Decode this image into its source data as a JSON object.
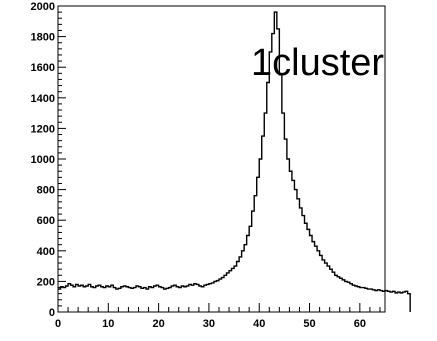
{
  "chart_data": {
    "type": "histogram",
    "title": "",
    "xlabel": "",
    "ylabel": "",
    "xlim": [
      0,
      65
    ],
    "ylim": [
      0,
      2000
    ],
    "grid": false,
    "legend": "none",
    "x_ticks": [
      "0",
      "10",
      "20",
      "30",
      "40",
      "50",
      "60"
    ],
    "y_ticks": [
      "0",
      "200",
      "400",
      "600",
      "800",
      "1000",
      "1200",
      "1400",
      "1600",
      "1800",
      "2000"
    ],
    "annotation": "1cluster",
    "line_color": "#000000",
    "bin_width": 0.5,
    "series": [
      {
        "x_start": 0,
        "values": [
          150,
          165,
          160,
          170,
          185,
          175,
          165,
          180,
          170,
          175,
          165,
          170,
          180,
          165,
          160,
          170,
          175,
          165,
          160,
          170,
          165,
          175,
          160,
          150,
          155,
          165,
          170,
          165,
          160,
          155,
          160,
          170,
          165,
          155,
          160,
          150,
          165,
          160,
          170,
          175,
          165,
          160,
          150,
          155,
          160,
          170,
          175,
          165,
          160,
          170,
          165,
          170,
          180,
          175,
          185,
          180,
          170,
          165,
          175,
          180,
          185,
          190,
          200,
          205,
          215,
          225,
          240,
          255,
          270,
          285,
          300,
          330,
          360,
          400,
          440,
          500,
          560,
          660,
          760,
          880,
          1000,
          1150,
          1300,
          1500,
          1700,
          1820,
          1960,
          1850,
          1550,
          1300,
          1130,
          1000,
          920,
          860,
          800,
          740,
          680,
          630,
          580,
          540,
          500,
          460,
          430,
          400,
          370,
          340,
          320,
          300,
          280,
          260,
          240,
          230,
          220,
          210,
          200,
          195,
          185,
          175,
          170,
          165,
          160,
          160,
          155,
          150,
          150,
          145,
          140,
          145,
          140,
          135,
          140,
          135,
          130,
          135,
          125,
          130,
          125,
          130,
          135,
          120
        ]
      }
    ]
  }
}
